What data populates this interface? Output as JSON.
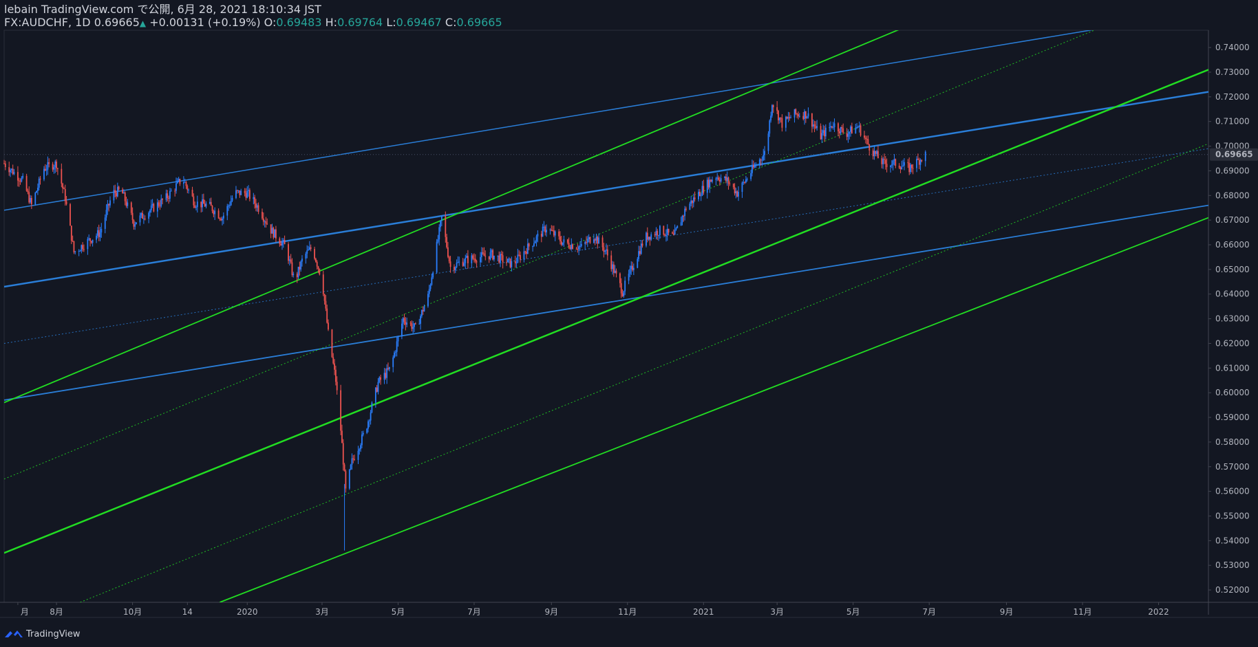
{
  "header": {
    "line1": "lebain TradingView.com で公開, 6月 28, 2021 18:10:34 JST",
    "symbol": "FX:AUDCHF, 1D",
    "last": "0.69665",
    "change": "+0.00131 (+0.19%)",
    "o_label": "O:",
    "o_value": "0.69483",
    "h_label": "H:",
    "h_value": "0.69764",
    "l_label": "L:",
    "l_value": "0.69467",
    "c_label": "C:",
    "c_value": "0.69665"
  },
  "footer": {
    "brand": "TradingView"
  },
  "colors": {
    "background": "#131722",
    "up": "#2a7fff",
    "down": "#ef5350",
    "channel_blue": "#2a7ed8",
    "channel_green": "#22dd22",
    "axis_text": "#b2b5be",
    "last_price_tag": "#2a2e39"
  },
  "chart_data": {
    "type": "candlestick",
    "symbol": "AUDCHF",
    "timeframe": "1D",
    "ylim": [
      0.515,
      0.747
    ],
    "y_ticks": [
      "0.74000",
      "0.73000",
      "0.72000",
      "0.71000",
      "0.70000",
      "0.69000",
      "0.68000",
      "0.67000",
      "0.66000",
      "0.65000",
      "0.64000",
      "0.63000",
      "0.62000",
      "0.61000",
      "0.60000",
      "0.59000",
      "0.58000",
      "0.57000",
      "0.56000",
      "0.55000",
      "0.54000",
      "0.53000",
      "0.52000"
    ],
    "last_price_label": "0.69665",
    "x_range": [
      "2019-06-20",
      "2022-02-10"
    ],
    "x_ticks": [
      {
        "date": "2019-07-01",
        "label": "月"
      },
      {
        "date": "2019-08-01",
        "label": "8月"
      },
      {
        "date": "2019-10-01",
        "label": "10月"
      },
      {
        "date": "2019-11-14",
        "label": "14"
      },
      {
        "date": "2020-01-01",
        "label": "2020"
      },
      {
        "date": "2020-03-01",
        "label": "3月"
      },
      {
        "date": "2020-05-01",
        "label": "5月"
      },
      {
        "date": "2020-07-01",
        "label": "7月"
      },
      {
        "date": "2020-09-01",
        "label": "9月"
      },
      {
        "date": "2020-11-01",
        "label": "11月"
      },
      {
        "date": "2021-01-01",
        "label": "2021"
      },
      {
        "date": "2021-03-01",
        "label": "3月"
      },
      {
        "date": "2021-05-01",
        "label": "5月"
      },
      {
        "date": "2021-07-01",
        "label": "7月"
      },
      {
        "date": "2021-09-01",
        "label": "9月"
      },
      {
        "date": "2021-11-01",
        "label": "11月"
      },
      {
        "date": "2022-01-01",
        "label": "2022"
      }
    ],
    "price_path": [
      [
        "2019-06-20",
        0.693
      ],
      [
        "2019-07-05",
        0.686
      ],
      [
        "2019-07-12",
        0.676
      ],
      [
        "2019-07-22",
        0.691
      ],
      [
        "2019-08-01",
        0.693
      ],
      [
        "2019-08-08",
        0.679
      ],
      [
        "2019-08-15",
        0.657
      ],
      [
        "2019-08-25",
        0.661
      ],
      [
        "2019-09-05",
        0.665
      ],
      [
        "2019-09-15",
        0.681
      ],
      [
        "2019-09-22",
        0.682
      ],
      [
        "2019-10-02",
        0.669
      ],
      [
        "2019-10-15",
        0.674
      ],
      [
        "2019-10-28",
        0.679
      ],
      [
        "2019-11-10",
        0.687
      ],
      [
        "2019-11-20",
        0.677
      ],
      [
        "2019-12-01",
        0.676
      ],
      [
        "2019-12-12",
        0.671
      ],
      [
        "2019-12-22",
        0.681
      ],
      [
        "2020-01-01",
        0.681
      ],
      [
        "2020-01-10",
        0.675
      ],
      [
        "2020-01-20",
        0.666
      ],
      [
        "2020-02-01",
        0.659
      ],
      [
        "2020-02-08",
        0.645
      ],
      [
        "2020-02-15",
        0.655
      ],
      [
        "2020-02-22",
        0.659
      ],
      [
        "2020-03-01",
        0.646
      ],
      [
        "2020-03-06",
        0.624
      ],
      [
        "2020-03-12",
        0.605
      ],
      [
        "2020-03-16",
        0.585
      ],
      [
        "2020-03-20",
        0.56
      ],
      [
        "2020-03-25",
        0.572
      ],
      [
        "2020-04-05",
        0.585
      ],
      [
        "2020-04-15",
        0.604
      ],
      [
        "2020-04-25",
        0.61
      ],
      [
        "2020-05-05",
        0.63
      ],
      [
        "2020-05-15",
        0.626
      ],
      [
        "2020-05-25",
        0.639
      ],
      [
        "2020-06-05",
        0.671
      ],
      [
        "2020-06-12",
        0.651
      ],
      [
        "2020-06-25",
        0.654
      ],
      [
        "2020-07-15",
        0.656
      ],
      [
        "2020-08-01",
        0.652
      ],
      [
        "2020-08-15",
        0.66
      ],
      [
        "2020-08-28",
        0.667
      ],
      [
        "2020-09-10",
        0.661
      ],
      [
        "2020-09-25",
        0.659
      ],
      [
        "2020-10-05",
        0.664
      ],
      [
        "2020-10-15",
        0.657
      ],
      [
        "2020-10-28",
        0.641
      ],
      [
        "2020-11-05",
        0.651
      ],
      [
        "2020-11-15",
        0.663
      ],
      [
        "2020-11-28",
        0.666
      ],
      [
        "2020-12-08",
        0.663
      ],
      [
        "2020-12-18",
        0.675
      ],
      [
        "2021-01-01",
        0.683
      ],
      [
        "2021-01-10",
        0.688
      ],
      [
        "2021-01-20",
        0.686
      ],
      [
        "2021-01-28",
        0.681
      ],
      [
        "2021-02-10",
        0.691
      ],
      [
        "2021-02-20",
        0.698
      ],
      [
        "2021-02-25",
        0.718
      ],
      [
        "2021-03-05",
        0.709
      ],
      [
        "2021-03-15",
        0.713
      ],
      [
        "2021-03-25",
        0.713
      ],
      [
        "2021-04-05",
        0.704
      ],
      [
        "2021-04-15",
        0.709
      ],
      [
        "2021-04-25",
        0.705
      ],
      [
        "2021-05-05",
        0.708
      ],
      [
        "2021-05-15",
        0.699
      ],
      [
        "2021-05-25",
        0.693
      ],
      [
        "2021-06-05",
        0.693
      ],
      [
        "2021-06-15",
        0.691
      ],
      [
        "2021-06-28",
        0.6966
      ]
    ],
    "trendlines": [
      {
        "color": "blue",
        "style": "solid",
        "width": 1.5,
        "p1": [
          "2019-06-20",
          0.674
        ],
        "p2": [
          "2021-12-01",
          0.749
        ]
      },
      {
        "color": "blue",
        "style": "solid",
        "width": 2.5,
        "p1": [
          "2019-06-20",
          0.643
        ],
        "p2": [
          "2022-02-10",
          0.722
        ]
      },
      {
        "color": "blue",
        "style": "solid",
        "width": 1.8,
        "p1": [
          "2019-06-20",
          0.597
        ],
        "p2": [
          "2022-02-10",
          0.676
        ]
      },
      {
        "color": "blue",
        "style": "dotted",
        "width": 1,
        "p1": [
          "2019-06-20",
          0.62
        ],
        "p2": [
          "2022-02-10",
          0.699
        ]
      },
      {
        "color": "green",
        "style": "solid",
        "width": 1.8,
        "p1": [
          "2019-06-20",
          0.596
        ],
        "p2": [
          "2021-06-15",
          0.749
        ]
      },
      {
        "color": "green",
        "style": "solid",
        "width": 2.5,
        "p1": [
          "2019-06-20",
          0.535
        ],
        "p2": [
          "2022-02-10",
          0.731
        ]
      },
      {
        "color": "green",
        "style": "solid",
        "width": 1.8,
        "p1": [
          "2019-12-10",
          0.515
        ],
        "p2": [
          "2022-02-10",
          0.671
        ]
      },
      {
        "color": "green",
        "style": "dotted",
        "width": 1,
        "p1": [
          "2019-06-20",
          0.565
        ],
        "p2": [
          "2021-11-20",
          0.749
        ]
      },
      {
        "color": "green",
        "style": "dotted",
        "width": 1,
        "p1": [
          "2019-08-20",
          0.515
        ],
        "p2": [
          "2022-02-10",
          0.701
        ]
      }
    ]
  }
}
